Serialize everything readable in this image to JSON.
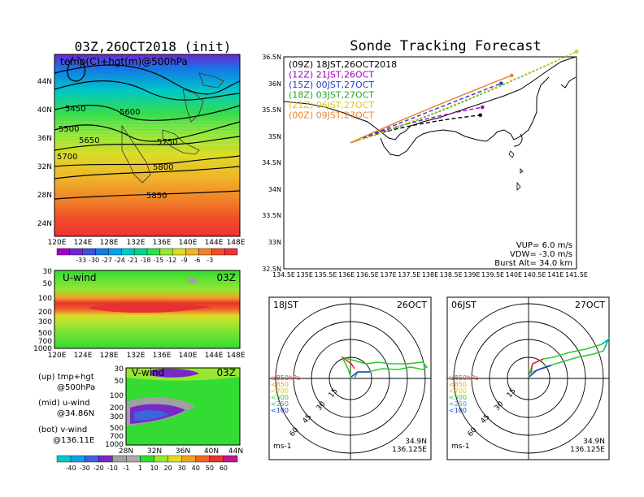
{
  "map500": {
    "title": "03Z,26OCT2018 (init)",
    "subtitle": "temp(C)+hgt(m)@500hPa",
    "lat_ticks": [
      "44N",
      "40N",
      "36N",
      "32N",
      "28N",
      "24N"
    ],
    "lon_ticks": [
      "120E",
      "124E",
      "128E",
      "132E",
      "136E",
      "140E",
      "144E",
      "148E"
    ],
    "contour_labels": [
      "5450",
      "5500",
      "5600",
      "5650",
      "5700",
      "5750",
      "5800",
      "5850"
    ],
    "colorbar_labels": [
      "-33",
      "-30",
      "-27",
      "-24",
      "-21",
      "-18",
      "-15",
      "-12",
      "-9",
      "-6",
      "-3"
    ],
    "colorbar_colors": [
      "#a000c8",
      "#6e28d2",
      "#3c50dc",
      "#1478e6",
      "#00a0f0",
      "#00c8c8",
      "#00d296",
      "#32dc50",
      "#96e632",
      "#dcdc28",
      "#f0b428",
      "#f08228",
      "#f05028",
      "#f03232"
    ]
  },
  "uwind": {
    "label": "U-wind",
    "time": "03Z",
    "p_ticks": [
      "30",
      "50",
      "100",
      "200",
      "300",
      "500",
      "700",
      "1000"
    ],
    "lon_ticks": [
      "120E",
      "124E",
      "128E",
      "132E",
      "136E",
      "140E",
      "144E",
      "148E"
    ]
  },
  "vwind": {
    "label": "V-wind",
    "time": "03Z",
    "p_ticks": [
      "30",
      "50",
      "100",
      "200",
      "300",
      "500",
      "700",
      "1000"
    ],
    "lat_ticks": [
      "28N",
      "32N",
      "36N",
      "40N",
      "44N"
    ]
  },
  "legend_text": {
    "up": "(up) tmp+hgt",
    "up2": "@500hPa",
    "mid": "(mid) u-wind",
    "mid2": "@34.86N",
    "bot": "(bot) v-wind",
    "bot2": "@136.11E"
  },
  "wind_colorbar": {
    "labels": [
      "-40",
      "-30",
      "-20",
      "-10",
      "-1",
      "1",
      "10",
      "20",
      "30",
      "40",
      "50",
      "60"
    ],
    "colors": [
      "#00c8c8",
      "#14a0e6",
      "#3c64dc",
      "#7828c8",
      "#a0a0a0",
      "#aaaaaa",
      "#32dc32",
      "#96e632",
      "#dcdc28",
      "#f0a028",
      "#f06428",
      "#e63232",
      "#c8148c"
    ]
  },
  "tracking": {
    "title": "Sonde Tracking Forecast",
    "lat_ticks": [
      "36.5N",
      "36N",
      "35.5N",
      "35N",
      "34.5N",
      "34N",
      "33.5N",
      "33N",
      "32.5N"
    ],
    "lon_ticks": [
      "134.5E",
      "135E",
      "135.5E",
      "136E",
      "136.5E",
      "137E",
      "137.5E",
      "138E",
      "138.5E",
      "139E",
      "139.5E",
      "140E",
      "140.5E",
      "141E",
      "141.5E"
    ],
    "launches": [
      {
        "label": "(09Z)  18JST,26OCT2018",
        "color": "#000000"
      },
      {
        "label": "(12Z)  21JST,26OCT",
        "color": "#a000c8"
      },
      {
        "label": "(15Z)  00JST,27OCT",
        "color": "#1e3cdc"
      },
      {
        "label": "(18Z)  03JST,27OCT",
        "color": "#1eaa1e"
      },
      {
        "label": "(21Z)  06JST,27OCT",
        "color": "#dcc81e"
      },
      {
        "label": "(00Z)  09JST,27OCT",
        "color": "#f08228"
      }
    ],
    "vup": "VUP=  6.0  m/s",
    "vdw": "VDW=  -3.0  m/s",
    "burst": "Burst Alt=  34.0  km"
  },
  "hodo1": {
    "time": "18JST",
    "date": "26OCT",
    "ring_labels": [
      "15",
      "30",
      "45",
      "60"
    ],
    "levels": [
      {
        "label": "≥850hPa",
        "color": "#e63232"
      },
      {
        "label": "<850",
        "color": "#f0a028"
      },
      {
        "label": "<700",
        "color": "#dcc81e"
      },
      {
        "label": "<500",
        "color": "#32c832"
      },
      {
        "label": "<250",
        "color": "#00b4c8"
      },
      {
        "label": "<100",
        "color": "#1e3cdc"
      }
    ],
    "units": "ms-1",
    "loc_lat": "34.9N",
    "loc_lon": "136.125E"
  },
  "hodo2": {
    "time": "06JST",
    "date": "27OCT",
    "ring_labels": [
      "15",
      "30",
      "45",
      "60"
    ],
    "levels": [
      {
        "label": "≥850hPa",
        "color": "#e63232"
      },
      {
        "label": "<850",
        "color": "#f0a028"
      },
      {
        "label": "<700",
        "color": "#dcc81e"
      },
      {
        "label": "<500",
        "color": "#32c832"
      },
      {
        "label": "<250",
        "color": "#00b4c8"
      },
      {
        "label": "<100",
        "color": "#1e3cdc"
      }
    ],
    "units": "ms-1",
    "loc_lat": "34.9N",
    "loc_lon": "136.125E"
  },
  "chart_data": [
    {
      "type": "heatmap",
      "title": "03Z,26OCT2018 (init)",
      "subtitle": "temp(C)+hgt(m)@500hPa",
      "x_range": [
        "120E",
        "148E"
      ],
      "y_range": [
        "22N",
        "47N"
      ],
      "colorbar": [
        -33,
        -30,
        -27,
        -24,
        -21,
        -18,
        -15,
        -12,
        -9,
        -6,
        -3
      ],
      "contours": [
        5450,
        5500,
        5600,
        5650,
        5700,
        5750,
        5800,
        5850
      ]
    },
    {
      "type": "heatmap",
      "title": "U-wind",
      "x_range": [
        "120E",
        "148E"
      ],
      "y_levels": [
        30,
        50,
        100,
        200,
        300,
        500,
        700,
        1000
      ]
    },
    {
      "type": "heatmap",
      "title": "V-wind",
      "x_range": [
        "28N",
        "44N"
      ],
      "y_levels": [
        30,
        50,
        100,
        200,
        300,
        500,
        700,
        1000
      ],
      "colorbar": [
        -40,
        -30,
        -20,
        -10,
        -1,
        1,
        10,
        20,
        30,
        40,
        50,
        60
      ]
    },
    {
      "type": "line",
      "title": "Sonde Tracking Forecast",
      "xlim": [
        134.5,
        141.5
      ],
      "ylim": [
        32.5,
        36.5
      ],
      "launch_point": [
        136.1,
        34.88
      ],
      "series": [
        {
          "name": "(09Z)  18JST,26OCT2018",
          "end": [
            139.2,
            35.4
          ]
        },
        {
          "name": "(12Z)  21JST,26OCT",
          "end": [
            139.25,
            35.55
          ]
        },
        {
          "name": "(15Z)  00JST,27OCT",
          "end": [
            139.7,
            36.0
          ]
        },
        {
          "name": "(18Z)  03JST,27OCT",
          "end": [
            141.5,
            36.6
          ]
        },
        {
          "name": "(21Z)  06JST,27OCT",
          "end": [
            141.5,
            36.6
          ]
        },
        {
          "name": "(00Z)  09JST,27OCT",
          "end": [
            139.95,
            36.15
          ]
        }
      ]
    },
    {
      "type": "line",
      "title": "18JST 26OCT",
      "ring_values": [
        15,
        30,
        45,
        60
      ],
      "units": "ms-1"
    },
    {
      "type": "line",
      "title": "06JST 27OCT",
      "ring_values": [
        15,
        30,
        45,
        60
      ],
      "units": "ms-1"
    }
  ]
}
